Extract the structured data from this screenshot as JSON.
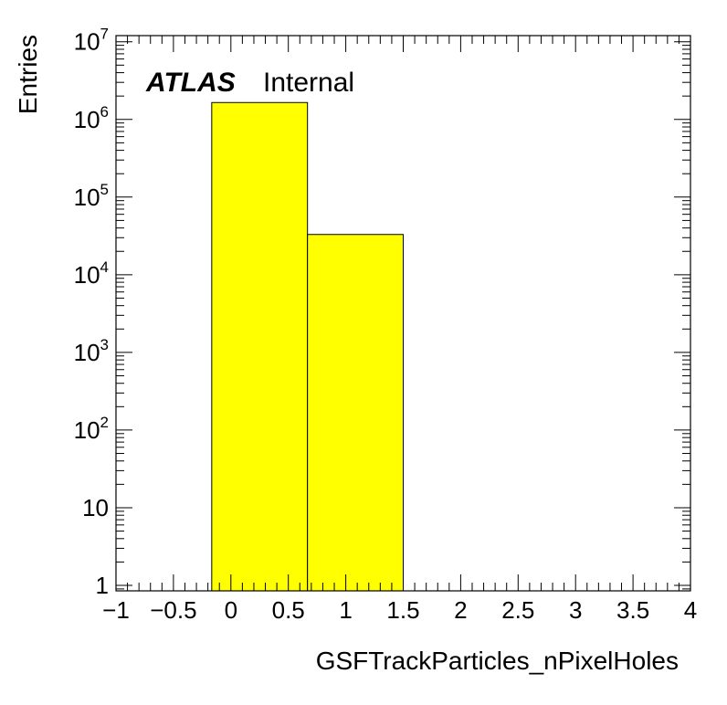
{
  "chart_data": {
    "type": "bar",
    "title": "",
    "xlabel": "GSFTrackParticles_nPixelHoles",
    "ylabel": "Entries",
    "xlim": [
      -1,
      4
    ],
    "ylim": [
      0.85,
      12000000
    ],
    "yscale": "log",
    "grid": false,
    "legend": "none",
    "bar_color": "#ffff00",
    "bar_edge_color": "#000000",
    "bins": [
      {
        "x_low": -0.1667,
        "x_high": 0.6667,
        "value": 1650000
      },
      {
        "x_low": 0.6667,
        "x_high": 1.5,
        "value": 33000
      }
    ],
    "x_ticks": [
      {
        "value": -1,
        "label": "−1"
      },
      {
        "value": -0.5,
        "label": "−0.5"
      },
      {
        "value": 0,
        "label": "0"
      },
      {
        "value": 0.5,
        "label": "0.5"
      },
      {
        "value": 1,
        "label": "1"
      },
      {
        "value": 1.5,
        "label": "1.5"
      },
      {
        "value": 2,
        "label": "2"
      },
      {
        "value": 2.5,
        "label": "2.5"
      },
      {
        "value": 3,
        "label": "3"
      },
      {
        "value": 3.5,
        "label": "3.5"
      },
      {
        "value": 4,
        "label": "4"
      }
    ],
    "y_ticks": [
      {
        "value": 1,
        "base": "1",
        "exp": ""
      },
      {
        "value": 10,
        "base": "10",
        "exp": ""
      },
      {
        "value": 100,
        "base": "10",
        "exp": "2"
      },
      {
        "value": 1000,
        "base": "10",
        "exp": "3"
      },
      {
        "value": 10000,
        "base": "10",
        "exp": "4"
      },
      {
        "value": 100000,
        "base": "10",
        "exp": "5"
      },
      {
        "value": 1000000,
        "base": "10",
        "exp": "6"
      },
      {
        "value": 10000000,
        "base": "10",
        "exp": "7"
      }
    ],
    "annotations": {
      "atlas": "ATLAS",
      "status": "Internal"
    }
  }
}
